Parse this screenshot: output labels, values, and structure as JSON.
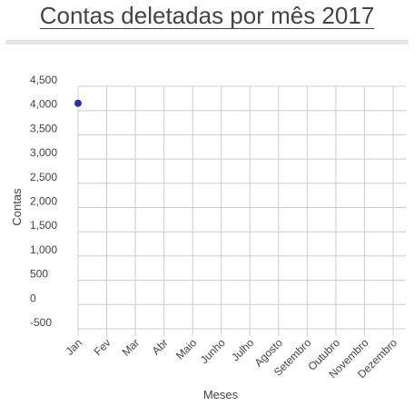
{
  "page": {
    "title": "Contas deletadas por mês 2017"
  },
  "chart_data": {
    "type": "scatter",
    "title": "Contas deletadas por mês 2017",
    "xlabel": "Meses",
    "ylabel": "Contas",
    "categories": [
      "Jan",
      "Fev",
      "Mar",
      "Abr",
      "Maio",
      "Junho",
      "Julho",
      "Agosto",
      "Setembro",
      "Outubro",
      "Novembro",
      "Dezembro"
    ],
    "y_ticks": [
      "4,500",
      "4,000",
      "3,500",
      "3,000",
      "2,500",
      "2,000",
      "1,500",
      "1,000",
      "500",
      "0",
      "-500"
    ],
    "ylim": [
      -500,
      4500
    ],
    "grid": true,
    "legend": "none",
    "series": [
      {
        "values": [
          4150,
          null,
          null,
          null,
          null,
          null,
          null,
          null,
          null,
          null,
          null,
          null
        ]
      }
    ],
    "colors": {
      "point": "#2b2fa8",
      "grid": "#cccccc",
      "axis_text": "#444444",
      "divider": "#e6e6e6"
    }
  }
}
